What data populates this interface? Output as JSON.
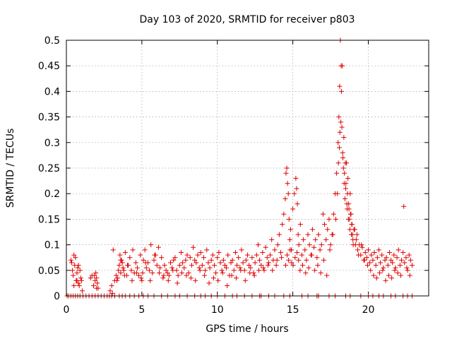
{
  "chart_data": {
    "type": "scatter",
    "title": "Day 103 of 2020, SRMTID for receiver p803",
    "xlabel": "GPS time / hours",
    "ylabel": "SRMTID / TECUs",
    "xlim": [
      0,
      24
    ],
    "ylim": [
      0,
      0.5
    ],
    "grid": true,
    "xticks": [
      0,
      5,
      10,
      15,
      20
    ],
    "xtick_labels": [
      "0",
      "5",
      "10",
      "15",
      "20"
    ],
    "yticks": [
      0,
      0.05,
      0.1,
      0.15,
      0.2,
      0.25,
      0.3,
      0.35,
      0.4,
      0.45,
      0.5
    ],
    "ytick_labels": [
      "0",
      "0.05",
      "0.1",
      "0.15",
      "0.2",
      "0.25",
      "0.3",
      "0.35",
      "0.4",
      "0.45",
      "0.5"
    ],
    "marker": "+",
    "marker_color": "#e00000",
    "series": [
      {
        "name": "SRMTID",
        "x": [
          0.05,
          0.15,
          0.3,
          0.45,
          0.6,
          0.75,
          0.9,
          1.1,
          1.3,
          1.5,
          1.7,
          1.9,
          2.1,
          2.3,
          2.5,
          2.7,
          2.85,
          3.0,
          3.2,
          3.5,
          3.7,
          3.9,
          4.2,
          4.5,
          4.8,
          5.1,
          5.4,
          5.8,
          6.3,
          6.7,
          7.2,
          7.5,
          8.0,
          8.5,
          8.9,
          9.2,
          9.6,
          10.0,
          10.5,
          11.0,
          11.3,
          11.8,
          12.3,
          12.8,
          12.9,
          13.4,
          13.8,
          14.4,
          14.8,
          15.6,
          16.0,
          16.6,
          16.7,
          17.4,
          17.8,
          18.5,
          18.8,
          19.5,
          20.0,
          20.3,
          20.7,
          21.0,
          21.5,
          21.8,
          22.3,
          22.6,
          22.9,
          0.3,
          0.35,
          0.4,
          0.45,
          0.5,
          0.55,
          0.6,
          0.65,
          0.7,
          0.75,
          0.8,
          0.85,
          0.9,
          0.95,
          1.0,
          1.6,
          1.8,
          1.85,
          1.9,
          1.95,
          2.0,
          2.05,
          2.1,
          2.9,
          3.0,
          3.1,
          3.2,
          3.3,
          3.4,
          3.45,
          3.5,
          3.55,
          3.6,
          3.65,
          3.7,
          3.75,
          3.8,
          3.9,
          4.0,
          4.1,
          4.2,
          4.3,
          4.4,
          4.5,
          4.6,
          4.7,
          4.8,
          4.9,
          5.0,
          5.05,
          5.1,
          5.2,
          5.3,
          5.4,
          5.5,
          5.6,
          5.7,
          5.8,
          5.9,
          6.0,
          6.1,
          6.2,
          6.3,
          6.4,
          6.5,
          6.6,
          6.7,
          6.8,
          6.9,
          7.0,
          7.1,
          7.2,
          7.3,
          7.4,
          7.5,
          7.6,
          7.7,
          7.8,
          7.9,
          8.0,
          8.1,
          8.2,
          8.3,
          8.4,
          8.5,
          8.6,
          8.7,
          8.8,
          8.9,
          9.0,
          9.1,
          9.2,
          9.3,
          9.4,
          9.5,
          9.6,
          9.7,
          9.8,
          9.9,
          10.0,
          10.1,
          10.2,
          10.3,
          10.4,
          10.5,
          10.6,
          10.7,
          10.8,
          10.9,
          11.0,
          11.1,
          11.2,
          11.3,
          11.4,
          11.5,
          11.6,
          11.7,
          11.8,
          11.9,
          12.0,
          12.1,
          12.2,
          12.3,
          12.4,
          12.5,
          12.6,
          12.7,
          12.8,
          12.9,
          13.0,
          13.1,
          13.2,
          13.3,
          13.4,
          13.5,
          13.6,
          13.7,
          13.8,
          13.9,
          14.0,
          14.1,
          14.2,
          14.3,
          14.4,
          14.5,
          14.55,
          14.6,
          14.65,
          14.7,
          14.75,
          14.8,
          14.85,
          14.9,
          15.0,
          15.1,
          15.2,
          15.25,
          15.3,
          15.35,
          15.4,
          15.5,
          15.6,
          15.7,
          15.8,
          15.9,
          16.0,
          16.1,
          16.2,
          16.3,
          16.4,
          16.5,
          16.6,
          16.7,
          16.8,
          16.9,
          17.0,
          17.1,
          17.2,
          17.3,
          17.4,
          17.5,
          17.6,
          17.7,
          17.8,
          17.9,
          18.0,
          18.05,
          18.1,
          18.15,
          18.2,
          18.25,
          18.3,
          18.35,
          18.4,
          18.45,
          18.5,
          18.55,
          18.6,
          18.65,
          18.7,
          18.75,
          18.8,
          18.85,
          18.9,
          18.95,
          19.0,
          19.1,
          19.2,
          19.3,
          19.4,
          19.5,
          19.6,
          19.7,
          19.8,
          19.9,
          20.0,
          20.1,
          20.2,
          20.3,
          20.4,
          20.5,
          20.6,
          20.7,
          20.8,
          20.9,
          21.0,
          21.1,
          21.2,
          21.3,
          21.4,
          21.5,
          21.6,
          21.7,
          21.8,
          21.9,
          22.0,
          22.1,
          22.2,
          22.3,
          22.4,
          22.5,
          22.6,
          22.7,
          22.8,
          22.9,
          0.5,
          0.7,
          0.8,
          1.05,
          1.7,
          2.0,
          3.05,
          3.35,
          3.6,
          3.85,
          4.05,
          4.35,
          4.65,
          4.95,
          5.25,
          5.55,
          5.85,
          6.15,
          6.45,
          6.75,
          7.05,
          7.35,
          7.65,
          7.95,
          8.25,
          8.55,
          8.85,
          9.15,
          9.45,
          9.75,
          10.05,
          10.35,
          10.65,
          10.95,
          11.25,
          11.55,
          11.85,
          12.15,
          12.45,
          12.75,
          13.05,
          13.35,
          13.65,
          13.95,
          14.25,
          14.52,
          14.62,
          14.72,
          14.82,
          14.92,
          15.02,
          15.15,
          15.28,
          15.38,
          15.48,
          15.65,
          15.85,
          16.05,
          16.25,
          16.45,
          16.65,
          16.85,
          17.05,
          17.25,
          17.45,
          17.65,
          17.85,
          17.95,
          18.02,
          18.08,
          18.12,
          18.18,
          18.22,
          18.28,
          18.32,
          18.38,
          18.42,
          18.48,
          18.52,
          18.58,
          18.62,
          18.68,
          18.72,
          18.78,
          18.82,
          18.88,
          18.92,
          18.98,
          19.05,
          19.15,
          19.25,
          19.35,
          19.55,
          19.75,
          19.95,
          20.15,
          20.35,
          20.55,
          20.75,
          20.95,
          21.15,
          21.35,
          21.55,
          21.75,
          21.95,
          22.15,
          22.35,
          22.55,
          22.75
        ],
        "y": [
          0,
          0,
          0,
          0,
          0,
          0,
          0,
          0,
          0,
          0,
          0,
          0,
          0,
          0,
          0,
          0,
          0,
          0,
          0,
          0,
          0,
          0,
          0,
          0,
          0,
          0,
          0,
          0,
          0,
          0,
          0,
          0,
          0,
          0,
          0,
          0,
          0,
          0,
          0,
          0,
          0,
          0,
          0,
          0,
          0,
          0,
          0,
          0,
          0,
          0,
          0,
          0,
          0,
          0,
          0,
          0,
          0,
          0,
          0,
          0,
          0,
          0,
          0,
          0,
          0,
          0,
          0,
          0.07,
          0.065,
          0.05,
          0.04,
          0.08,
          0.06,
          0.075,
          0.03,
          0.045,
          0.055,
          0.06,
          0.02,
          0.05,
          0.035,
          0.03,
          0.035,
          0.02,
          0.04,
          0.03,
          0.045,
          0.035,
          0.025,
          0.015,
          0.01,
          0.02,
          0.09,
          0.03,
          0.04,
          0.035,
          0.05,
          0.06,
          0.08,
          0.045,
          0.07,
          0.065,
          0.055,
          0.05,
          0.085,
          0.04,
          0.06,
          0.075,
          0.05,
          0.09,
          0.045,
          0.065,
          0.055,
          0.04,
          0.08,
          0.03,
          0.045,
          0.07,
          0.09,
          0.055,
          0.065,
          0.05,
          0.1,
          0.045,
          0.07,
          0.08,
          0.06,
          0.095,
          0.055,
          0.075,
          0.035,
          0.06,
          0.05,
          0.045,
          0.04,
          0.065,
          0.055,
          0.07,
          0.075,
          0.05,
          0.04,
          0.06,
          0.085,
          0.065,
          0.055,
          0.07,
          0.08,
          0.045,
          0.075,
          0.06,
          0.095,
          0.07,
          0.065,
          0.08,
          0.055,
          0.085,
          0.06,
          0.075,
          0.05,
          0.09,
          0.065,
          0.055,
          0.07,
          0.08,
          0.06,
          0.045,
          0.075,
          0.085,
          0.065,
          0.05,
          0.07,
          0.06,
          0.055,
          0.08,
          0.04,
          0.065,
          0.07,
          0.05,
          0.085,
          0.06,
          0.075,
          0.055,
          0.09,
          0.065,
          0.05,
          0.07,
          0.08,
          0.06,
          0.055,
          0.075,
          0.045,
          0.065,
          0.08,
          0.1,
          0.07,
          0.06,
          0.085,
          0.05,
          0.095,
          0.075,
          0.065,
          0.08,
          0.11,
          0.07,
          0.09,
          0.06,
          0.1,
          0.12,
          0.085,
          0.14,
          0.16,
          0.19,
          0.24,
          0.25,
          0.22,
          0.2,
          0.15,
          0.11,
          0.13,
          0.09,
          0.17,
          0.2,
          0.23,
          0.21,
          0.18,
          0.12,
          0.1,
          0.14,
          0.08,
          0.11,
          0.09,
          0.07,
          0.12,
          0.1,
          0.08,
          0.13,
          0.095,
          0.11,
          0.075,
          0.12,
          0.09,
          0.1,
          0.16,
          0.14,
          0.11,
          0.13,
          0.15,
          0.1,
          0.12,
          0.16,
          0.2,
          0.24,
          0.3,
          0.35,
          0.41,
          0.5,
          0.45,
          0.33,
          0.28,
          0.25,
          0.22,
          0.19,
          0.21,
          0.26,
          0.17,
          0.23,
          0.18,
          0.15,
          0.2,
          0.16,
          0.14,
          0.12,
          0.1,
          0.13,
          0.11,
          0.09,
          0.1,
          0.08,
          0.095,
          0.07,
          0.085,
          0.075,
          0.09,
          0.065,
          0.08,
          0.07,
          0.085,
          0.06,
          0.075,
          0.09,
          0.065,
          0.08,
          0.055,
          0.07,
          0.075,
          0.06,
          0.085,
          0.07,
          0.065,
          0.08,
          0.055,
          0.075,
          0.09,
          0.06,
          0.07,
          0.085,
          0.065,
          0.075,
          0.05,
          0.08,
          0.07,
          0.06,
          0.02,
          0.03,
          0.025,
          0.01,
          0.04,
          0.015,
          0.005,
          0.03,
          0.07,
          0.04,
          0.06,
          0.03,
          0.045,
          0.035,
          0.065,
          0.03,
          0.08,
          0.045,
          0.04,
          0.03,
          0.05,
          0.025,
          0.045,
          0.04,
          0.035,
          0.03,
          0.05,
          0.04,
          0.025,
          0.035,
          0.03,
          0.045,
          0.02,
          0.04,
          0.035,
          0.05,
          0.03,
          0.045,
          0.04,
          0.05,
          0.055,
          0.06,
          0.05,
          0.07,
          0.075,
          0.06,
          0.08,
          0.07,
          0.09,
          0.065,
          0.06,
          0.075,
          0.085,
          0.07,
          0.05,
          0.06,
          0.045,
          0.055,
          0.08,
          0.05,
          0.06,
          0.045,
          0.07,
          0.04,
          0.09,
          0.12,
          0.15,
          0.2,
          0.26,
          0.29,
          0.32,
          0.34,
          0.4,
          0.45,
          0.27,
          0.31,
          0.24,
          0.26,
          0.22,
          0.18,
          0.2,
          0.15,
          0.17,
          0.13,
          0.16,
          0.12,
          0.14,
          0.11,
          0.13,
          0.1,
          0.12,
          0.08,
          0.1,
          0.07,
          0.06,
          0.05,
          0.04,
          0.035,
          0.045,
          0.05,
          0.03,
          0.04,
          0.035,
          0.05,
          0.045,
          0.04,
          0.175,
          0.055,
          0.04
        ]
      }
    ]
  }
}
